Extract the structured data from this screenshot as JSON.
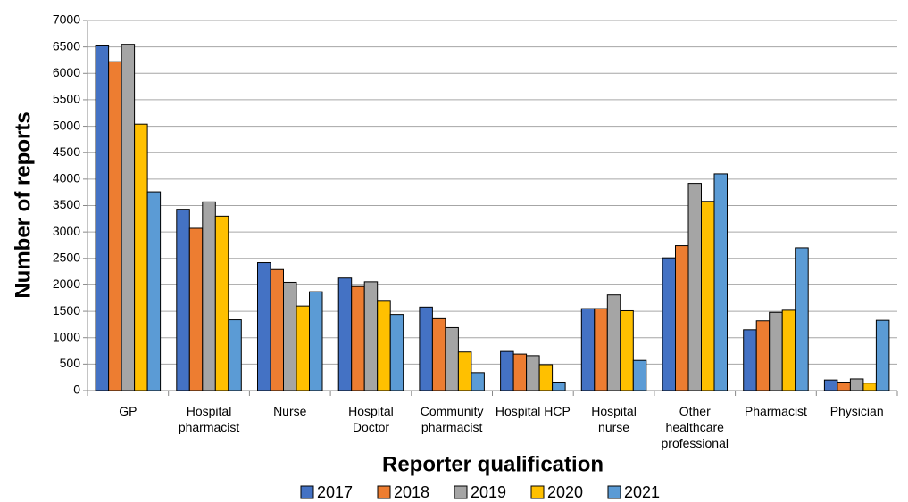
{
  "chart_data": {
    "type": "bar",
    "y_label": "Number of reports",
    "x_label": "Reporter qualification",
    "categories": [
      "GP",
      "Hospital pharmacist",
      "Nurse",
      "Hospital Doctor",
      "Community pharmacist",
      "Hospital HCP",
      "Hospital nurse",
      "Other healthcare professional",
      "Pharmacist",
      "Physician"
    ],
    "series": [
      {
        "name": "2017",
        "color": "#4472c4",
        "values": [
          6520,
          3430,
          2420,
          2130,
          1580,
          740,
          1550,
          2510,
          1150,
          200
        ]
      },
      {
        "name": "2018",
        "color": "#ed7d31",
        "values": [
          6220,
          3070,
          2290,
          1970,
          1360,
          690,
          1550,
          2740,
          1320,
          160
        ]
      },
      {
        "name": "2019",
        "color": "#a5a5a5",
        "values": [
          6550,
          3570,
          2050,
          2060,
          1190,
          660,
          1810,
          3920,
          1480,
          220
        ]
      },
      {
        "name": "2020",
        "color": "#ffc000",
        "values": [
          5040,
          3300,
          1600,
          1690,
          730,
          490,
          1510,
          3580,
          1520,
          140
        ]
      },
      {
        "name": "2021",
        "color": "#5b9bd5",
        "values": [
          3760,
          1340,
          1870,
          1440,
          340,
          160,
          570,
          4100,
          2700,
          1330
        ]
      }
    ],
    "ylim": [
      0,
      7000
    ],
    "yticks": [
      0,
      500,
      1000,
      1500,
      2000,
      2500,
      3000,
      3500,
      4000,
      4500,
      5000,
      5500,
      6000,
      6500,
      7000
    ],
    "grid": true,
    "legend": "bottom"
  }
}
